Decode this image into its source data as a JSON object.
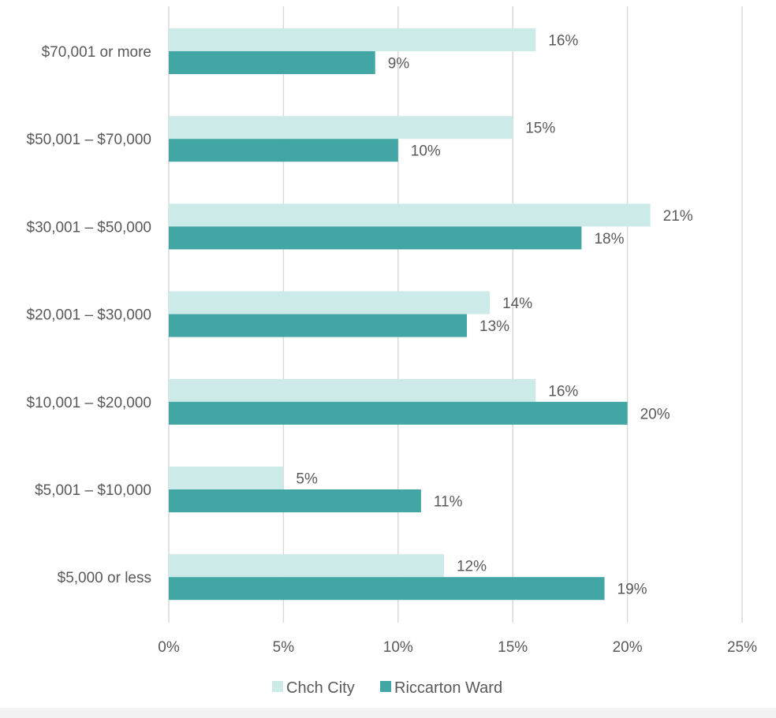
{
  "chart_data": {
    "type": "bar",
    "orientation": "horizontal",
    "categories": [
      "$70,001 or more",
      "$50,001 – $70,000",
      "$30,001 – $50,000",
      "$20,001 – $30,000",
      "$10,001 – $20,000",
      "$5,001 – $10,000",
      "$5,000 or less"
    ],
    "series": [
      {
        "name": "Chch City",
        "color": "#cceae8",
        "values": [
          16,
          15,
          21,
          14,
          16,
          5,
          12
        ],
        "labels": [
          "16%",
          "15%",
          "21%",
          "14%",
          "16%",
          "5%",
          "12%"
        ]
      },
      {
        "name": "Riccarton Ward",
        "color": "#41a6a4",
        "values": [
          9,
          10,
          18,
          13,
          20,
          11,
          19
        ],
        "labels": [
          "9%",
          "10%",
          "18%",
          "13%",
          "20%",
          "11%",
          "19%"
        ]
      }
    ],
    "xlim": [
      0,
      25
    ],
    "xticks": [
      "0%",
      "5%",
      "10%",
      "15%",
      "20%",
      "25%"
    ],
    "grid": true,
    "legend_position": "bottom"
  }
}
